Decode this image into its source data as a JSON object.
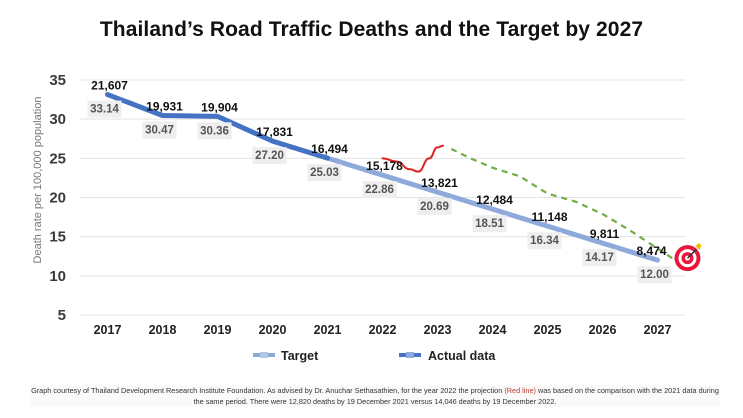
{
  "chart_data": {
    "type": "line",
    "title": "Thailand’s Road Traffic Deaths and the Target by 2027",
    "xlabel": "",
    "ylabel": "Death rate per 100,000 population",
    "ylim": [
      5,
      35
    ],
    "yticks": [
      5,
      10,
      15,
      20,
      25,
      30,
      35
    ],
    "grid": true,
    "legend_position": "bottom",
    "categories": [
      "2017",
      "2018",
      "2019",
      "2020",
      "2021",
      "2022",
      "2023",
      "2024",
      "2025",
      "2026",
      "2027"
    ],
    "series": [
      {
        "name": "Actual data",
        "color": "#4472c4",
        "x": [
          "2017",
          "2018",
          "2019",
          "2020",
          "2021"
        ],
        "values": [
          33.14,
          30.47,
          30.36,
          27.2,
          25.03
        ]
      },
      {
        "name": "Target",
        "color": "#8eaadb",
        "x": [
          "2021",
          "2022",
          "2023",
          "2024",
          "2025",
          "2026",
          "2027"
        ],
        "values": [
          25.03,
          22.86,
          20.69,
          18.51,
          16.34,
          14.17,
          12.0
        ]
      },
      {
        "name": "2022 projection (red line)",
        "color": "#e02020",
        "in_legend": false,
        "x": [
          5.0,
          5.25,
          5.5,
          5.65,
          5.85,
          6.0,
          6.1
        ],
        "values": [
          25.0,
          24.6,
          23.6,
          23.3,
          25.0,
          26.4,
          26.6
        ]
      },
      {
        "name": "Trend (dashed green)",
        "color": "#70ad47",
        "in_legend": false,
        "x": [
          6.25,
          6.6,
          7.0,
          7.5,
          8.0,
          8.5,
          9.0,
          9.5,
          10.0,
          10.3
        ],
        "values": [
          26.2,
          25.0,
          23.8,
          22.7,
          20.5,
          19.5,
          17.9,
          15.8,
          13.5,
          12.1
        ]
      }
    ],
    "data_labels": {
      "deaths": [
        "21,607",
        "19,931",
        "19,904",
        "17,831",
        "16,494",
        "15,178",
        "13,821",
        "12,484",
        "11,148",
        "9,811",
        "8,474"
      ],
      "rates": [
        "33.14",
        "30.47",
        "30.36",
        "27.20",
        "25.03",
        "22.86",
        "20.69",
        "18.51",
        "16.34",
        "14.17",
        "12.00"
      ]
    },
    "annotations": [
      {
        "type": "target-icon",
        "near": "2027",
        "color": "#e8173c"
      }
    ]
  },
  "legend": {
    "target_label": "Target",
    "actual_label": "Actual data"
  },
  "footnote": {
    "part1": "Graph courtesy of Thailand Development Research Institute Foundation. As advised by Dr. Anuchar Sethasathien, for the year 2022 the projection ",
    "red_part": "(Red line)",
    "part2": " was based on the comparison with the 2021 data during the same period. There were 12,820 deaths by 19 December 2021 versus 14,046 deaths by 19 December 2022."
  }
}
